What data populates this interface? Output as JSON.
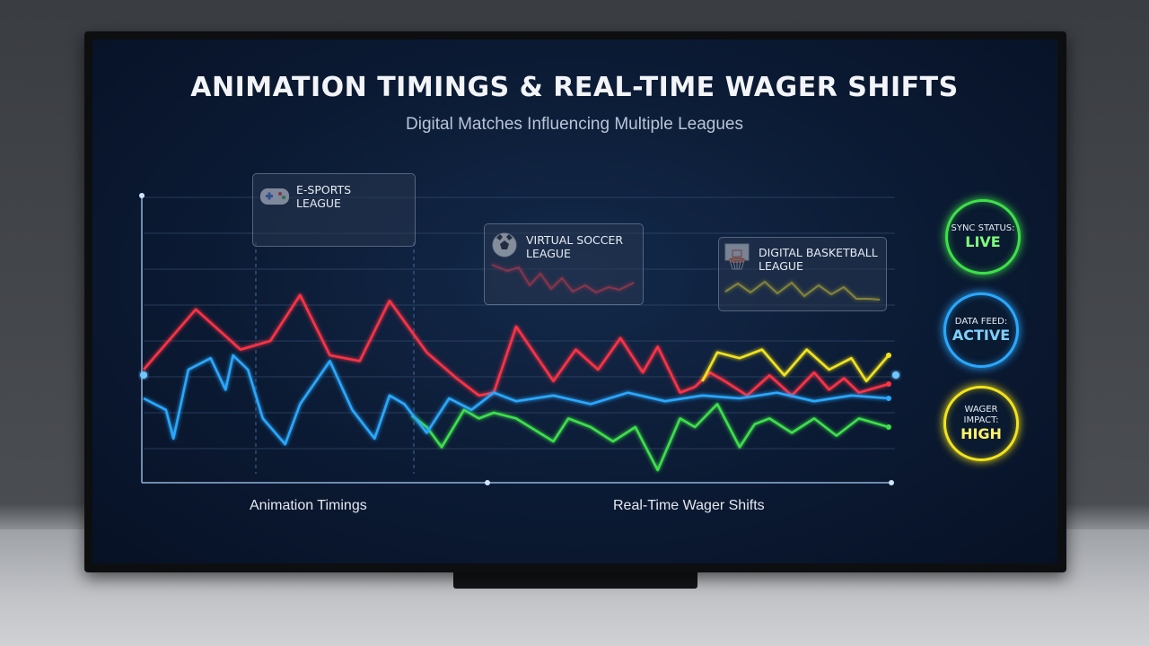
{
  "title": "ANIMATION TIMINGS & REAL-TIME WAGER SHIFTS",
  "subtitle": "Digital Matches Influencing Multiple Leagues",
  "x_labels": {
    "left": "Animation Timings",
    "right": "Real-Time Wager Shifts"
  },
  "leagues": [
    {
      "name_line1": "E-SPORTS",
      "name_line2": "LEAGUE",
      "icon": "gamepad-icon",
      "color": "#3ee04a"
    },
    {
      "name_line1": "VIRTUAL SOCCER",
      "name_line2": "LEAGUE",
      "icon": "soccer-ball-icon",
      "color": "#ff3344"
    },
    {
      "name_line1": "DIGITAL BASKETBALL",
      "name_line2": "LEAGUE",
      "icon": "basketball-hoop-icon",
      "color": "#f2e31c"
    }
  ],
  "status": [
    {
      "label": "SYNC STATUS:",
      "value": "LIVE",
      "color": "#3ee04a"
    },
    {
      "label": "DATA FEED:",
      "value": "ACTIVE",
      "color": "#2aa8ff"
    },
    {
      "label": "WAGER IMPACT:",
      "value": "HIGH",
      "color": "#f2e31c"
    }
  ],
  "chart_data": {
    "type": "line",
    "title": "ANIMATION TIMINGS & REAL-TIME WAGER SHIFTS",
    "subtitle": "Digital Matches Influencing Multiple Leagues",
    "ylim": [
      0,
      10
    ],
    "grid": true,
    "series": [
      {
        "name": "VIRTUAL SOCCER LEAGUE",
        "color": "#ff3344",
        "x": [
          0,
          7,
          13,
          17,
          21,
          25,
          29,
          33,
          38,
          42,
          45,
          47,
          50,
          55,
          58,
          61,
          64,
          67,
          69,
          72,
          74,
          76,
          78,
          81,
          84,
          87,
          90,
          92,
          94,
          96,
          100
        ],
        "y": [
          4.0,
          6.1,
          4.7,
          5.0,
          6.6,
          4.5,
          4.3,
          6.4,
          4.6,
          3.7,
          3.1,
          3.2,
          5.5,
          3.6,
          4.7,
          4.0,
          5.1,
          3.9,
          4.8,
          3.2,
          3.4,
          3.9,
          3.6,
          3.1,
          3.8,
          3.1,
          3.9,
          3.3,
          3.7,
          3.2,
          3.5
        ]
      },
      {
        "name": "E-SPORTS LEAGUE",
        "color": "#3ee04a",
        "x": [
          36,
          38,
          40,
          43,
          45,
          47,
          50,
          55,
          57,
          60,
          63,
          66,
          69,
          72,
          74,
          77,
          80,
          82,
          84,
          87,
          90,
          93,
          96,
          100
        ],
        "y": [
          2.4,
          2.0,
          1.3,
          2.6,
          2.3,
          2.5,
          2.3,
          1.5,
          2.3,
          2.0,
          1.5,
          2.0,
          0.5,
          2.3,
          2.0,
          2.8,
          1.3,
          2.1,
          2.3,
          1.8,
          2.3,
          1.7,
          2.3,
          2.0
        ]
      },
      {
        "name": "DIGITAL BASKETBALL LEAGUE",
        "color": "#f2e31c",
        "x": [
          75,
          77,
          80,
          83,
          86,
          89,
          92,
          95,
          97,
          100
        ],
        "y": [
          3.6,
          4.6,
          4.4,
          4.7,
          3.8,
          4.7,
          4.0,
          4.4,
          3.6,
          4.5
        ]
      },
      {
        "name": "Animation Timings",
        "color": "#2aa8ff",
        "x": [
          0,
          3,
          4,
          6,
          9,
          11,
          12,
          14,
          16,
          19,
          21,
          25,
          28,
          31,
          33,
          35,
          38,
          41,
          44,
          47,
          50,
          55,
          60,
          65,
          70,
          75,
          80,
          85,
          90,
          95,
          100
        ],
        "y": [
          3.0,
          2.6,
          1.6,
          4.0,
          4.4,
          3.3,
          4.5,
          4.0,
          2.3,
          1.4,
          2.8,
          4.3,
          2.6,
          1.6,
          3.1,
          2.8,
          1.8,
          3.0,
          2.6,
          3.2,
          2.9,
          3.1,
          2.8,
          3.2,
          2.9,
          3.1,
          3.0,
          3.2,
          2.9,
          3.1,
          3.0
        ]
      }
    ]
  }
}
